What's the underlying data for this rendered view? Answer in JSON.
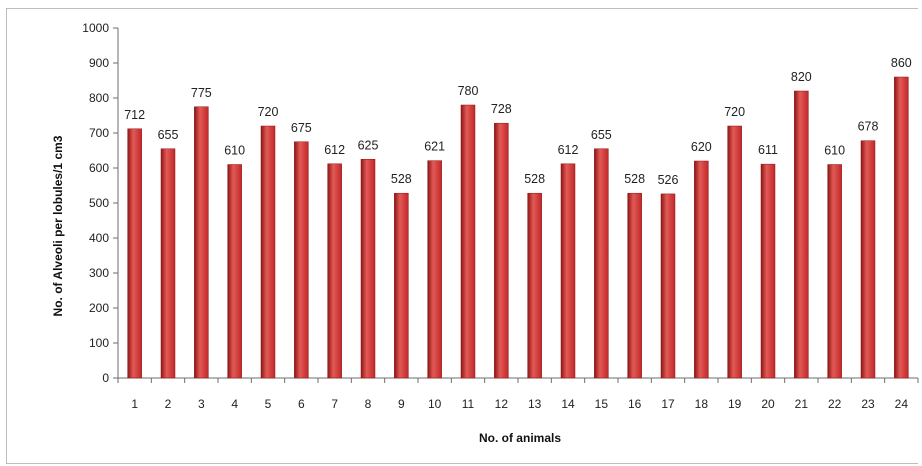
{
  "chart_data": {
    "type": "bar",
    "categories": [
      "1",
      "2",
      "3",
      "4",
      "5",
      "6",
      "7",
      "8",
      "9",
      "10",
      "11",
      "12",
      "13",
      "14",
      "15",
      "16",
      "17",
      "18",
      "19",
      "20",
      "21",
      "22",
      "23",
      "24"
    ],
    "values": [
      712,
      655,
      775,
      610,
      720,
      675,
      612,
      625,
      528,
      621,
      780,
      728,
      528,
      612,
      655,
      528,
      526,
      620,
      720,
      611,
      820,
      610,
      678,
      860
    ],
    "title": "",
    "xlabel": "No. of animals",
    "ylabel": "No. of Alveoli per lobules/1 cm3",
    "ylim": [
      0,
      1000
    ],
    "yticks": [
      0,
      100,
      200,
      300,
      400,
      500,
      600,
      700,
      800,
      900,
      1000
    ],
    "grid": false,
    "legend": "none",
    "colors": {
      "bar": "#c0282a",
      "bar_dark": "#8e1515",
      "bar_light": "#e25a56",
      "axis": "#6e6e6e"
    }
  }
}
